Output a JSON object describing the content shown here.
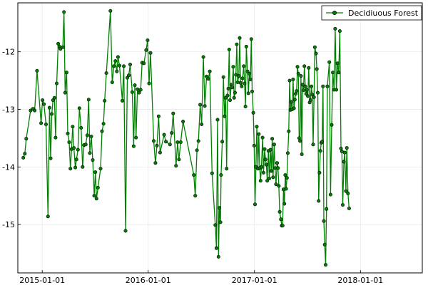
{
  "chart_data": {
    "type": "line",
    "title": "",
    "xlabel": "",
    "ylabel": "",
    "x_ticks": [
      "2015-01-01",
      "2016-01-01",
      "2017-01-01",
      "2018-01-01"
    ],
    "y_ticks": [
      -12,
      -13,
      -14,
      -15
    ],
    "xlim": [
      "2014-10-09",
      "2018-08-02"
    ],
    "ylim": [
      -15.84,
      -11.15
    ],
    "grid": true,
    "legend_position": "top-right",
    "series": [
      {
        "name": "Decidiuous Forest",
        "color": "#008000",
        "marker": "circle",
        "points": [
          [
            "2014-10-28",
            -13.84
          ],
          [
            "2014-11-02",
            -13.77
          ],
          [
            "2014-11-07",
            -13.51
          ],
          [
            "2014-11-22",
            -13.02
          ],
          [
            "2014-11-30",
            -12.99
          ],
          [
            "2014-12-06",
            -13.02
          ],
          [
            "2014-12-14",
            -12.33
          ],
          [
            "2014-12-28",
            -13.24
          ],
          [
            "2015-01-02",
            -12.84
          ],
          [
            "2015-01-07",
            -12.91
          ],
          [
            "2015-01-14",
            -13.26
          ],
          [
            "2015-01-21",
            -14.86
          ],
          [
            "2015-01-26",
            -12.97
          ],
          [
            "2015-01-30",
            -13.85
          ],
          [
            "2015-02-03",
            -13.08
          ],
          [
            "2015-02-07",
            -12.84
          ],
          [
            "2015-02-12",
            -12.8
          ],
          [
            "2015-02-16",
            -13.49
          ],
          [
            "2015-02-20",
            -12.55
          ],
          [
            "2015-02-25",
            -11.86
          ],
          [
            "2015-03-01",
            -11.91
          ],
          [
            "2015-03-05",
            -11.95
          ],
          [
            "2015-03-13",
            -11.92
          ],
          [
            "2015-03-17",
            -11.31
          ],
          [
            "2015-03-21",
            -12.71
          ],
          [
            "2015-03-26",
            -12.36
          ],
          [
            "2015-03-30",
            -13.42
          ],
          [
            "2015-04-04",
            -13.57
          ],
          [
            "2015-04-08",
            -14.03
          ],
          [
            "2015-04-12",
            -13.69
          ],
          [
            "2015-04-16",
            -13.3
          ],
          [
            "2015-04-20",
            -13.67
          ],
          [
            "2015-04-25",
            -14.01
          ],
          [
            "2015-04-29",
            -13.87
          ],
          [
            "2015-05-04",
            -13.7
          ],
          [
            "2015-05-09",
            -12.98
          ],
          [
            "2015-05-15",
            -13.32
          ],
          [
            "2015-05-20",
            -14.0
          ],
          [
            "2015-05-25",
            -13.62
          ],
          [
            "2015-05-31",
            -13.61
          ],
          [
            "2015-06-05",
            -13.45
          ],
          [
            "2015-06-10",
            -12.83
          ],
          [
            "2015-06-14",
            -13.76
          ],
          [
            "2015-06-19",
            -13.47
          ],
          [
            "2015-06-24",
            -13.88
          ],
          [
            "2015-06-29",
            -14.5
          ],
          [
            "2015-07-03",
            -14.09
          ],
          [
            "2015-07-07",
            -14.55
          ],
          [
            "2015-07-12",
            -14.36
          ],
          [
            "2015-07-21",
            -14.03
          ],
          [
            "2015-07-26",
            -13.38
          ],
          [
            "2015-07-31",
            -13.25
          ],
          [
            "2015-08-04",
            -12.85
          ],
          [
            "2015-08-10",
            -12.37
          ],
          [
            "2015-08-24",
            -11.29
          ],
          [
            "2015-08-30",
            -12.53
          ],
          [
            "2015-09-05",
            -12.25
          ],
          [
            "2015-09-10",
            -12.16
          ],
          [
            "2015-09-15",
            -12.34
          ],
          [
            "2015-09-19",
            -12.09
          ],
          [
            "2015-09-24",
            -12.24
          ],
          [
            "2015-10-04",
            -12.85
          ],
          [
            "2015-10-09",
            -12.25
          ],
          [
            "2015-10-15",
            -15.11
          ],
          [
            "2015-10-21",
            -12.45
          ],
          [
            "2015-10-26",
            -12.41
          ],
          [
            "2015-10-31",
            -12.22
          ],
          [
            "2015-11-07",
            -12.7
          ],
          [
            "2015-11-12",
            -13.64
          ],
          [
            "2015-11-16",
            -12.58
          ],
          [
            "2015-11-20",
            -13.49
          ],
          [
            "2015-11-25",
            -12.65
          ],
          [
            "2015-12-01",
            -12.71
          ],
          [
            "2015-12-06",
            -12.66
          ],
          [
            "2015-12-11",
            -12.19
          ],
          [
            "2015-12-17",
            -12.2
          ],
          [
            "2015-12-25",
            -11.97
          ],
          [
            "2015-12-30",
            -11.8
          ],
          [
            "2016-01-04",
            -12.55
          ],
          [
            "2016-01-09",
            -12.02
          ],
          [
            "2016-01-20",
            -13.55
          ],
          [
            "2016-01-26",
            -13.93
          ],
          [
            "2016-01-31",
            -13.63
          ],
          [
            "2016-02-06",
            -13.12
          ],
          [
            "2016-02-11",
            -13.75
          ],
          [
            "2016-02-25",
            -13.44
          ],
          [
            "2016-03-02",
            -13.56
          ],
          [
            "2016-03-16",
            -13.61
          ],
          [
            "2016-03-22",
            -13.41
          ],
          [
            "2016-03-27",
            -13.07
          ],
          [
            "2016-04-06",
            -13.98
          ],
          [
            "2016-04-11",
            -13.57
          ],
          [
            "2016-04-16",
            -13.87
          ],
          [
            "2016-04-22",
            -13.57
          ],
          [
            "2016-04-30",
            -13.21
          ],
          [
            "2016-06-06",
            -14.14
          ],
          [
            "2016-06-11",
            -14.5
          ],
          [
            "2016-06-17",
            -13.71
          ],
          [
            "2016-06-22",
            -13.55
          ],
          [
            "2016-06-28",
            -12.92
          ],
          [
            "2016-07-03",
            -13.26
          ],
          [
            "2016-07-09",
            -12.09
          ],
          [
            "2016-07-14",
            -12.94
          ],
          [
            "2016-07-20",
            -12.43
          ],
          [
            "2016-07-26",
            -12.47
          ],
          [
            "2016-07-31",
            -12.34
          ],
          [
            "2016-08-08",
            -14.11
          ],
          [
            "2016-08-19",
            -15.01
          ],
          [
            "2016-08-23",
            -15.41
          ],
          [
            "2016-08-27",
            -13.18
          ],
          [
            "2016-08-30",
            -15.56
          ],
          [
            "2016-09-02",
            -14.71
          ],
          [
            "2016-09-06",
            -14.96
          ],
          [
            "2016-09-08",
            -14.14
          ],
          [
            "2016-09-12",
            -13.56
          ],
          [
            "2016-09-16",
            -12.44
          ],
          [
            "2016-09-20",
            -13.12
          ],
          [
            "2016-09-24",
            -12.8
          ],
          [
            "2016-09-27",
            -14.03
          ],
          [
            "2016-09-30",
            -12.76
          ],
          [
            "2016-10-03",
            -12.64
          ],
          [
            "2016-10-06",
            -11.96
          ],
          [
            "2016-10-09",
            -12.84
          ],
          [
            "2016-10-13",
            -12.57
          ],
          [
            "2016-10-16",
            -12.62
          ],
          [
            "2016-10-20",
            -12.26
          ],
          [
            "2016-10-23",
            -12.8
          ],
          [
            "2016-10-26",
            -12.71
          ],
          [
            "2016-10-29",
            -12.4
          ],
          [
            "2016-11-01",
            -11.87
          ],
          [
            "2016-11-04",
            -12.53
          ],
          [
            "2016-11-08",
            -12.42
          ],
          [
            "2016-11-11",
            -11.76
          ],
          [
            "2016-11-14",
            -12.54
          ],
          [
            "2016-11-18",
            -12.6
          ],
          [
            "2016-11-21",
            -12.46
          ],
          [
            "2016-11-25",
            -12.25
          ],
          [
            "2016-11-28",
            -12.55
          ],
          [
            "2016-12-01",
            -12.95
          ],
          [
            "2016-12-04",
            -11.91
          ],
          [
            "2016-12-08",
            -12.34
          ],
          [
            "2016-12-11",
            -12.72
          ],
          [
            "2016-12-14",
            -12.38
          ],
          [
            "2016-12-18",
            -12.48
          ],
          [
            "2016-12-21",
            -11.78
          ],
          [
            "2016-12-24",
            -12.69
          ],
          [
            "2016-12-28",
            -13.06
          ],
          [
            "2016-12-31",
            -13.63
          ],
          [
            "2017-01-03",
            -14.65
          ],
          [
            "2017-01-06",
            -14.0
          ],
          [
            "2017-01-09",
            -13.3
          ],
          [
            "2017-01-13",
            -14.03
          ],
          [
            "2017-01-16",
            -13.43
          ],
          [
            "2017-01-19",
            -14.02
          ],
          [
            "2017-01-22",
            -14.24
          ],
          [
            "2017-01-25",
            -14.0
          ],
          [
            "2017-01-29",
            -13.49
          ],
          [
            "2017-02-01",
            -14.1
          ],
          [
            "2017-02-05",
            -13.69
          ],
          [
            "2017-02-08",
            -13.87
          ],
          [
            "2017-02-11",
            -13.96
          ],
          [
            "2017-02-14",
            -14.24
          ],
          [
            "2017-02-18",
            -13.72
          ],
          [
            "2017-02-21",
            -14.2
          ],
          [
            "2017-02-25",
            -13.7
          ],
          [
            "2017-02-28",
            -14.07
          ],
          [
            "2017-03-03",
            -13.51
          ],
          [
            "2017-03-06",
            -14.18
          ],
          [
            "2017-03-10",
            -13.61
          ],
          [
            "2017-03-13",
            -14.02
          ],
          [
            "2017-03-16",
            -14.3
          ],
          [
            "2017-03-20",
            -13.93
          ],
          [
            "2017-03-23",
            -14.02
          ],
          [
            "2017-03-26",
            -14.33
          ],
          [
            "2017-03-29",
            -14.78
          ],
          [
            "2017-04-02",
            -14.91
          ],
          [
            "2017-04-05",
            -15.02
          ],
          [
            "2017-04-08",
            -15.02
          ],
          [
            "2017-04-11",
            -14.39
          ],
          [
            "2017-04-14",
            -14.64
          ],
          [
            "2017-04-17",
            -14.14
          ],
          [
            "2017-04-20",
            -14.38
          ],
          [
            "2017-04-23",
            -14.19
          ],
          [
            "2017-04-26",
            -13.76
          ],
          [
            "2017-04-29",
            -13.38
          ],
          [
            "2017-05-02",
            -12.5
          ],
          [
            "2017-05-05",
            -13.01
          ],
          [
            "2017-05-08",
            -12.87
          ],
          [
            "2017-05-11",
            -13.0
          ],
          [
            "2017-05-14",
            -12.48
          ],
          [
            "2017-05-17",
            -12.98
          ],
          [
            "2017-05-20",
            -12.83
          ],
          [
            "2017-05-23",
            -12.73
          ],
          [
            "2017-05-26",
            -12.68
          ],
          [
            "2017-05-29",
            -12.26
          ],
          [
            "2017-06-01",
            -12.38
          ],
          [
            "2017-06-04",
            -13.5
          ],
          [
            "2017-06-07",
            -13.55
          ],
          [
            "2017-06-10",
            -12.42
          ],
          [
            "2017-06-13",
            -13.78
          ],
          [
            "2017-06-16",
            -12.57
          ],
          [
            "2017-06-19",
            -12.67
          ],
          [
            "2017-06-22",
            -12.25
          ],
          [
            "2017-06-25",
            -12.6
          ],
          [
            "2017-06-28",
            -12.73
          ],
          [
            "2017-07-01",
            -12.66
          ],
          [
            "2017-07-04",
            -12.77
          ],
          [
            "2017-07-07",
            -12.28
          ],
          [
            "2017-07-10",
            -12.88
          ],
          [
            "2017-07-13",
            -12.84
          ],
          [
            "2017-07-16",
            -12.6
          ],
          [
            "2017-07-19",
            -12.74
          ],
          [
            "2017-07-22",
            -13.61
          ],
          [
            "2017-07-25",
            -12.79
          ],
          [
            "2017-07-28",
            -11.92
          ],
          [
            "2017-08-01",
            -12.03
          ],
          [
            "2017-08-04",
            -12.3
          ],
          [
            "2017-08-07",
            -12.71
          ],
          [
            "2017-08-10",
            -14.59
          ],
          [
            "2017-08-13",
            -14.1
          ],
          [
            "2017-08-16",
            -13.72
          ],
          [
            "2017-08-19",
            -13.58
          ],
          [
            "2017-08-22",
            -13.56
          ],
          [
            "2017-08-25",
            -12.6
          ],
          [
            "2017-08-28",
            -14.94
          ],
          [
            "2017-08-31",
            -15.35
          ],
          [
            "2017-09-03",
            -15.7
          ],
          [
            "2017-09-06",
            -14.73
          ],
          [
            "2017-09-09",
            -12.6
          ],
          [
            "2017-09-16",
            -12.18
          ],
          [
            "2017-09-20",
            -14.48
          ],
          [
            "2017-09-24",
            -13.27
          ],
          [
            "2017-09-28",
            -12.36
          ],
          [
            "2017-10-02",
            -12.66
          ],
          [
            "2017-10-06",
            -11.6
          ],
          [
            "2017-10-10",
            -12.66
          ],
          [
            "2017-10-14",
            -12.2
          ],
          [
            "2017-10-18",
            -12.36
          ],
          [
            "2017-10-22",
            -11.64
          ],
          [
            "2017-10-26",
            -13.68
          ],
          [
            "2017-10-29",
            -13.73
          ],
          [
            "2017-11-01",
            -14.66
          ],
          [
            "2017-11-05",
            -13.91
          ],
          [
            "2017-11-08",
            -13.75
          ],
          [
            "2017-11-12",
            -14.42
          ],
          [
            "2017-11-15",
            -13.67
          ],
          [
            "2017-11-19",
            -14.46
          ],
          [
            "2017-11-23",
            -14.72
          ]
        ]
      }
    ]
  }
}
